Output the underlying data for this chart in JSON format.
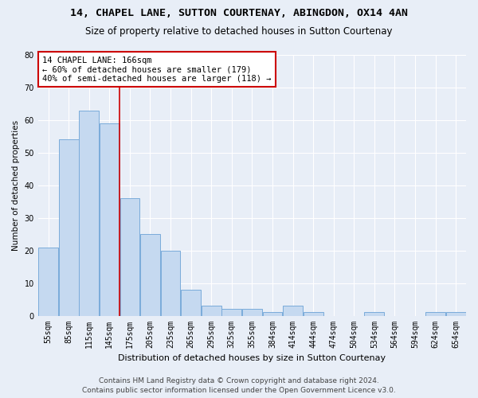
{
  "title": "14, CHAPEL LANE, SUTTON COURTENAY, ABINGDON, OX14 4AN",
  "subtitle": "Size of property relative to detached houses in Sutton Courtenay",
  "xlabel": "Distribution of detached houses by size in Sutton Courtenay",
  "ylabel": "Number of detached properties",
  "categories": [
    "55sqm",
    "85sqm",
    "115sqm",
    "145sqm",
    "175sqm",
    "205sqm",
    "235sqm",
    "265sqm",
    "295sqm",
    "325sqm",
    "355sqm",
    "384sqm",
    "414sqm",
    "444sqm",
    "474sqm",
    "504sqm",
    "534sqm",
    "564sqm",
    "594sqm",
    "624sqm",
    "654sqm"
  ],
  "values": [
    21,
    54,
    63,
    59,
    36,
    25,
    20,
    8,
    3,
    2,
    2,
    1,
    3,
    1,
    0,
    0,
    1,
    0,
    0,
    1,
    1
  ],
  "bar_color": "#c5d9f0",
  "bar_edge_color": "#7aabda",
  "vline_x": 3.5,
  "vline_color": "#cc0000",
  "ylim": [
    0,
    80
  ],
  "yticks": [
    0,
    10,
    20,
    30,
    40,
    50,
    60,
    70,
    80
  ],
  "annotation_text": "14 CHAPEL LANE: 166sqm\n← 60% of detached houses are smaller (179)\n40% of semi-detached houses are larger (118) →",
  "annotation_box_color": "#ffffff",
  "annotation_box_edge": "#cc0000",
  "footer1": "Contains HM Land Registry data © Crown copyright and database right 2024.",
  "footer2": "Contains public sector information licensed under the Open Government Licence v3.0.",
  "background_color": "#e8eef7",
  "title_fontsize": 9.5,
  "subtitle_fontsize": 8.5,
  "xlabel_fontsize": 8,
  "ylabel_fontsize": 7.5,
  "tick_fontsize": 7,
  "footer_fontsize": 6.5,
  "annotation_fontsize": 7.5
}
